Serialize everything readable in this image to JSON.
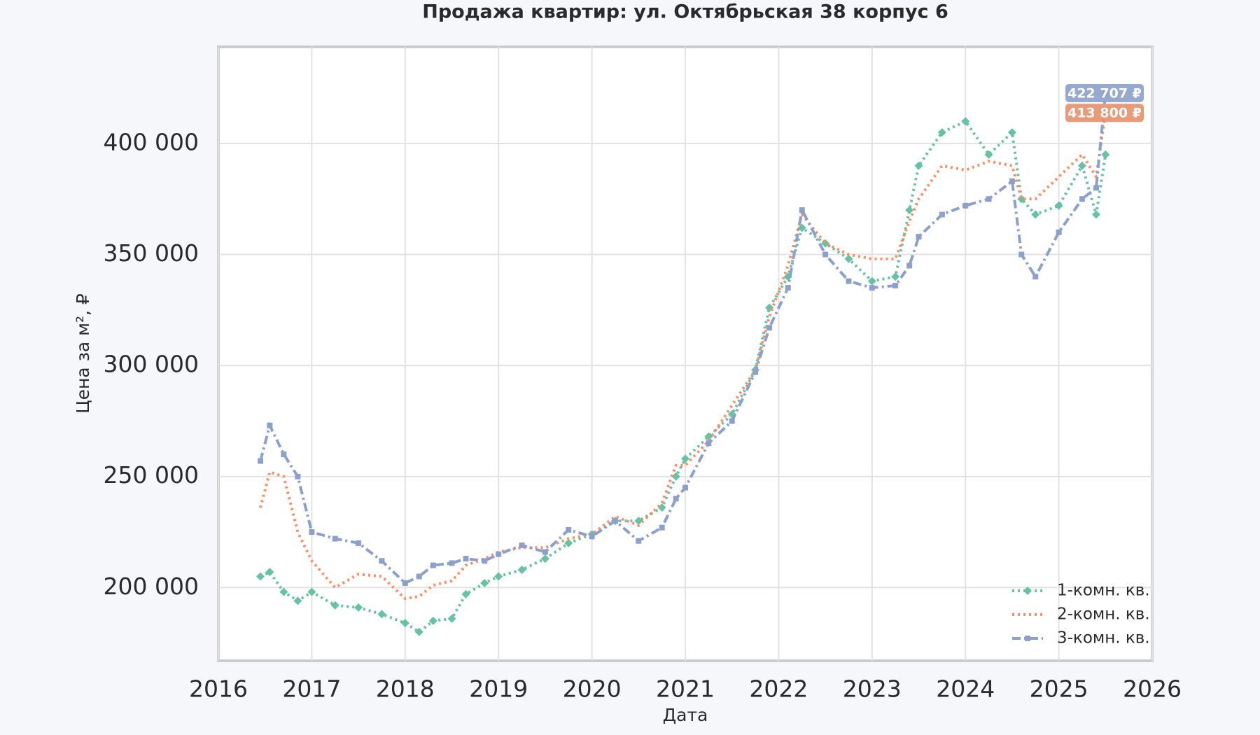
{
  "chart_data": {
    "type": "line",
    "title": "Продажа квартир: ул. Октябрьская 38 корпус 6",
    "x_label": "Дата",
    "y_label": "Цена за м², ₽",
    "x": [
      2016.45,
      2016.55,
      2016.7,
      2016.85,
      2017.0,
      2017.25,
      2017.5,
      2017.75,
      2018.0,
      2018.15,
      2018.3,
      2018.5,
      2018.65,
      2018.85,
      2019.0,
      2019.25,
      2019.5,
      2019.75,
      2020.0,
      2020.25,
      2020.5,
      2020.75,
      2020.9,
      2021.0,
      2021.25,
      2021.5,
      2021.75,
      2021.9,
      2022.1,
      2022.25,
      2022.5,
      2022.75,
      2023.0,
      2023.25,
      2023.4,
      2023.5,
      2023.75,
      2024.0,
      2024.25,
      2024.5,
      2024.6,
      2024.75,
      2025.0,
      2025.25,
      2025.4,
      2025.5
    ],
    "series": [
      {
        "name": "1-комн. кв.",
        "color": "#66c2a5",
        "dash": "3 5",
        "marker": "diamond",
        "values": [
          205000,
          207000,
          198000,
          194000,
          198000,
          192000,
          191000,
          188000,
          184000,
          180000,
          185000,
          186000,
          197000,
          202000,
          205000,
          208000,
          213000,
          220000,
          224000,
          230000,
          230000,
          236000,
          250000,
          258000,
          268000,
          278000,
          298000,
          326000,
          340000,
          362000,
          355000,
          348000,
          338000,
          340000,
          370000,
          390000,
          405000,
          410000,
          395000,
          405000,
          375000,
          368000,
          372000,
          390000,
          368000,
          395000
        ]
      },
      {
        "name": "2-комн. кв.",
        "color": "#fc8d62",
        "dash": "3 5",
        "marker": null,
        "values": [
          236000,
          252000,
          250000,
          225000,
          212000,
          200000,
          206000,
          205000,
          195000,
          196000,
          201000,
          203000,
          210000,
          213000,
          216000,
          218000,
          218000,
          222000,
          224000,
          232000,
          228000,
          238000,
          255000,
          255000,
          266000,
          282000,
          298000,
          322000,
          345000,
          368000,
          355000,
          350000,
          348000,
          348000,
          365000,
          375000,
          390000,
          388000,
          392000,
          390000,
          375000,
          375000,
          385000,
          395000,
          385000,
          413800
        ]
      },
      {
        "name": "3-комн. кв.",
        "color": "#8da0cb",
        "dash": "12 5 3 5",
        "marker": "square",
        "values": [
          257000,
          273000,
          260000,
          250000,
          225000,
          222000,
          220000,
          212000,
          202000,
          205000,
          210000,
          211000,
          213000,
          212000,
          215000,
          219000,
          216000,
          226000,
          223000,
          230000,
          221000,
          227000,
          240000,
          245000,
          265000,
          275000,
          297000,
          317000,
          335000,
          370000,
          350000,
          338000,
          335000,
          336000,
          345000,
          358000,
          368000,
          372000,
          375000,
          383000,
          350000,
          340000,
          360000,
          375000,
          380000,
          422707
        ]
      }
    ],
    "annotations": [
      {
        "text": "422 707 ₽",
        "value": 422707,
        "color": "#8da0cb"
      },
      {
        "text": "413 800 ₽",
        "value": 413800,
        "color": "#e58f6a"
      }
    ],
    "xlim": [
      2016,
      2026
    ],
    "xticks": [
      2016,
      2017,
      2018,
      2019,
      2020,
      2021,
      2022,
      2023,
      2024,
      2025,
      2026
    ],
    "ylim": [
      167000,
      443500
    ],
    "yticks": [
      {
        "value": 200000,
        "label": "200 000"
      },
      {
        "value": 250000,
        "label": "250 000"
      },
      {
        "value": 300000,
        "label": "300 000"
      },
      {
        "value": 350000,
        "label": "350 000"
      },
      {
        "value": 400000,
        "label": "400 000"
      }
    ],
    "grid": true,
    "legend": "lower right"
  }
}
